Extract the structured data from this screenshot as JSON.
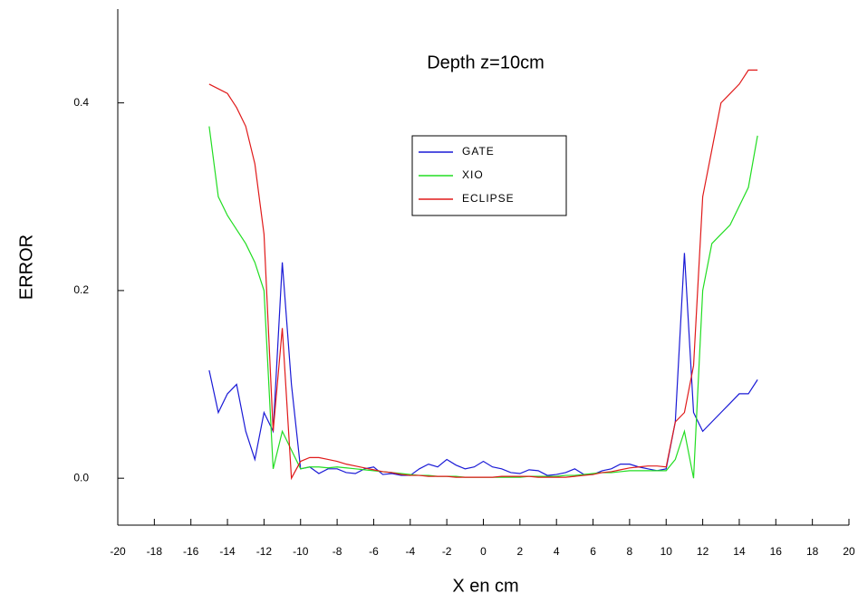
{
  "chart_data": {
    "type": "line",
    "title": "Depth z=10cm",
    "x_label": "X en cm",
    "y_label": "ERROR",
    "x": [
      -15,
      -14.5,
      -14,
      -13.5,
      -13,
      -12.5,
      -12,
      -11.5,
      -11,
      -10.5,
      -10,
      -9.5,
      -9,
      -8.5,
      -8,
      -7.5,
      -7,
      -6.5,
      -6,
      -5.5,
      -5,
      -4.5,
      -4,
      -3.5,
      -3,
      -2.5,
      -2,
      -1.5,
      -1,
      -0.5,
      0,
      0.5,
      1,
      1.5,
      2,
      2.5,
      3,
      3.5,
      4,
      4.5,
      5,
      5.5,
      6,
      6.5,
      7,
      7.5,
      8,
      8.5,
      9,
      9.5,
      10,
      10.5,
      11,
      11.5,
      12,
      12.5,
      13,
      13.5,
      14,
      14.5,
      15
    ],
    "series": [
      {
        "name": "GATE",
        "color": "#1a1ad6",
        "values": [
          0.115,
          0.07,
          0.09,
          0.1,
          0.05,
          0.02,
          0.07,
          0.05,
          0.23,
          0.1,
          0.01,
          0.012,
          0.005,
          0.01,
          0.01,
          0.006,
          0.005,
          0.01,
          0.012,
          0.004,
          0.005,
          0.003,
          0.003,
          0.01,
          0.015,
          0.012,
          0.02,
          0.014,
          0.01,
          0.012,
          0.018,
          0.012,
          0.01,
          0.006,
          0.005,
          0.009,
          0.008,
          0.003,
          0.004,
          0.006,
          0.01,
          0.004,
          0.004,
          0.008,
          0.01,
          0.015,
          0.015,
          0.012,
          0.01,
          0.008,
          0.01,
          0.06,
          0.24,
          0.07,
          0.05,
          0.06,
          0.07,
          0.08,
          0.09,
          0.09,
          0.105
        ]
      },
      {
        "name": "XIO",
        "color": "#22dd22",
        "values": [
          0.375,
          0.3,
          0.28,
          0.265,
          0.25,
          0.23,
          0.2,
          0.01,
          0.05,
          0.03,
          0.01,
          0.012,
          0.012,
          0.011,
          0.012,
          0.011,
          0.01,
          0.009,
          0.008,
          0.007,
          0.006,
          0.005,
          0.004,
          0.003,
          0.003,
          0.002,
          0.002,
          0.002,
          0.001,
          0.001,
          0.001,
          0.001,
          0.001,
          0.001,
          0.001,
          0.002,
          0.002,
          0.002,
          0.002,
          0.003,
          0.003,
          0.004,
          0.005,
          0.006,
          0.006,
          0.007,
          0.008,
          0.008,
          0.008,
          0.008,
          0.008,
          0.02,
          0.05,
          0.0,
          0.2,
          0.25,
          0.26,
          0.27,
          0.29,
          0.31,
          0.365
        ]
      },
      {
        "name": "ECLIPSE",
        "color": "#e01a1a",
        "values": [
          0.42,
          0.415,
          0.41,
          0.395,
          0.375,
          0.335,
          0.26,
          0.05,
          0.16,
          0.0,
          0.018,
          0.022,
          0.022,
          0.02,
          0.018,
          0.015,
          0.013,
          0.011,
          0.009,
          0.007,
          0.006,
          0.004,
          0.003,
          0.003,
          0.002,
          0.002,
          0.002,
          0.001,
          0.001,
          0.001,
          0.001,
          0.001,
          0.002,
          0.002,
          0.002,
          0.002,
          0.001,
          0.001,
          0.001,
          0.001,
          0.002,
          0.003,
          0.004,
          0.006,
          0.007,
          0.009,
          0.011,
          0.012,
          0.013,
          0.013,
          0.012,
          0.06,
          0.07,
          0.12,
          0.3,
          0.35,
          0.4,
          0.41,
          0.42,
          0.435,
          0.435
        ]
      }
    ],
    "xlim": [
      -20,
      20
    ],
    "xticks": [
      -20,
      -18,
      -16,
      -14,
      -12,
      -10,
      -8,
      -6,
      -4,
      -2,
      0,
      2,
      4,
      6,
      8,
      10,
      12,
      14,
      16,
      18,
      20
    ],
    "ylim": [
      -0.05,
      0.5
    ],
    "yticks": [
      {
        "value": 0,
        "label": "0.0"
      },
      {
        "value": 0.2,
        "label": "0.2"
      },
      {
        "value": 0.4,
        "label": "0.4"
      }
    ]
  }
}
